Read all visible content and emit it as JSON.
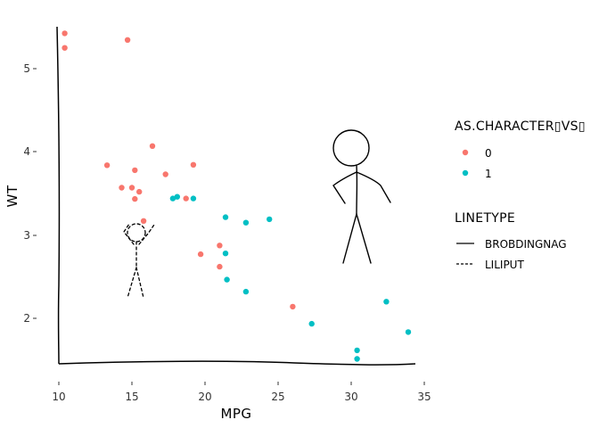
{
  "chart_data": {
    "type": "scatter",
    "title": "",
    "xlabel": "MPG",
    "ylabel": "WT",
    "xlim": [
      10,
      35
    ],
    "ylim": [
      1.5,
      5.5
    ],
    "xticks": [
      "10",
      "15",
      "20",
      "25",
      "30",
      "35"
    ],
    "yticks": [
      "2",
      "3",
      "4",
      "5"
    ],
    "grid": false,
    "legend_position": "right",
    "legends": [
      {
        "title": "AS.CHARACTER▯VS▯",
        "entries": [
          {
            "label": "0",
            "color": "#F8766D"
          },
          {
            "label": "1",
            "color": "#00BFC4"
          }
        ]
      },
      {
        "title": "LINETYPE",
        "entries": [
          {
            "label": "BROBDINGNAG",
            "style": "solid"
          },
          {
            "label": "LILIPUT",
            "style": "dashed"
          }
        ]
      }
    ],
    "series": [
      {
        "name": "0",
        "color": "#F8766D",
        "points": [
          [
            21.0,
            2.62
          ],
          [
            21.0,
            2.875
          ],
          [
            18.7,
            3.44
          ],
          [
            14.3,
            3.57
          ],
          [
            16.4,
            4.07
          ],
          [
            17.3,
            3.73
          ],
          [
            15.2,
            3.78
          ],
          [
            10.4,
            5.25
          ],
          [
            10.4,
            5.424
          ],
          [
            14.7,
            5.345
          ],
          [
            15.5,
            3.52
          ],
          [
            15.2,
            3.435
          ],
          [
            13.3,
            3.84
          ],
          [
            19.2,
            3.845
          ],
          [
            26.0,
            2.14
          ],
          [
            15.8,
            3.17
          ],
          [
            19.7,
            2.77
          ],
          [
            15.0,
            3.57
          ]
        ]
      },
      {
        "name": "1",
        "color": "#00BFC4",
        "points": [
          [
            22.8,
            2.32
          ],
          [
            21.4,
            3.215
          ],
          [
            18.1,
            3.46
          ],
          [
            24.4,
            3.19
          ],
          [
            22.8,
            3.15
          ],
          [
            19.2,
            3.44
          ],
          [
            17.8,
            3.44
          ],
          [
            32.4,
            2.2
          ],
          [
            30.4,
            1.615
          ],
          [
            33.9,
            1.835
          ],
          [
            21.5,
            2.465
          ],
          [
            27.3,
            1.935
          ],
          [
            30.4,
            1.513
          ],
          [
            21.4,
            2.78
          ]
        ]
      }
    ]
  }
}
